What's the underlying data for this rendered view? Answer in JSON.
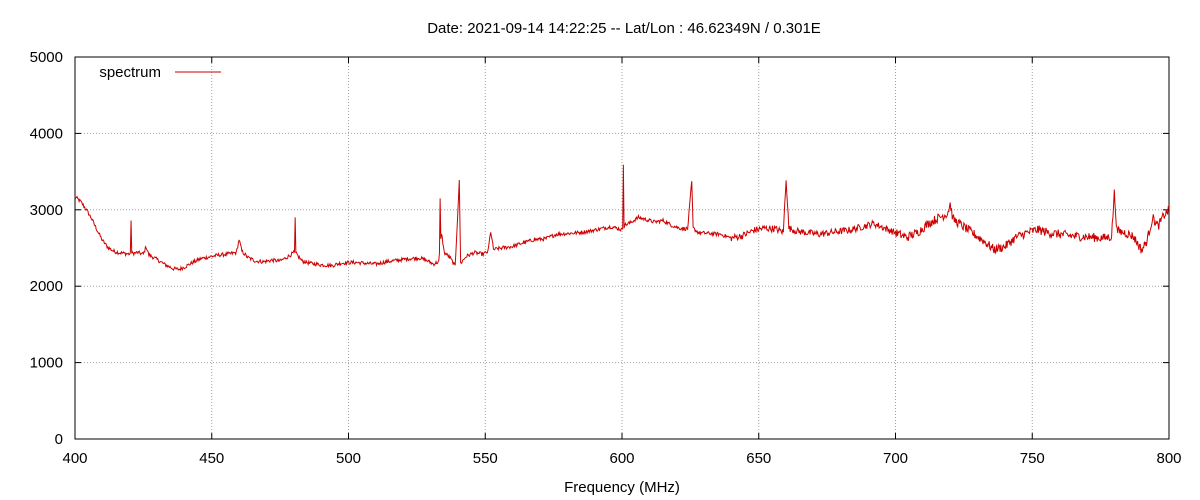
{
  "chart_data": {
    "type": "line",
    "title": "Date: 2021-09-14 14:22:25  --  Lat/Lon : 46.62349N / 0.301E",
    "xlabel": "Frequency (MHz)",
    "ylabel": "",
    "xlim": [
      400,
      800
    ],
    "ylim": [
      0,
      5000
    ],
    "x_ticks": [
      400,
      450,
      500,
      550,
      600,
      650,
      700,
      750,
      800
    ],
    "y_ticks": [
      0,
      1000,
      2000,
      3000,
      4000,
      5000
    ],
    "grid": true,
    "legend_position": "top-left",
    "series": [
      {
        "name": "spectrum",
        "color": "#cc0000",
        "points": [
          [
            400,
            3170
          ],
          [
            402,
            3110
          ],
          [
            404,
            3010
          ],
          [
            406,
            2890
          ],
          [
            408,
            2740
          ],
          [
            410,
            2600
          ],
          [
            412,
            2510
          ],
          [
            414,
            2460
          ],
          [
            416,
            2440
          ],
          [
            418,
            2430
          ],
          [
            420,
            2420
          ],
          [
            420.5,
            2860
          ],
          [
            421,
            2430
          ],
          [
            423,
            2440
          ],
          [
            425,
            2420
          ],
          [
            426,
            2520
          ],
          [
            427,
            2410
          ],
          [
            430,
            2350
          ],
          [
            433,
            2280
          ],
          [
            436,
            2230
          ],
          [
            438,
            2220
          ],
          [
            440,
            2250
          ],
          [
            443,
            2310
          ],
          [
            446,
            2360
          ],
          [
            450,
            2390
          ],
          [
            453,
            2410
          ],
          [
            456,
            2420
          ],
          [
            459,
            2440
          ],
          [
            460,
            2610
          ],
          [
            461,
            2460
          ],
          [
            463,
            2380
          ],
          [
            466,
            2330
          ],
          [
            469,
            2320
          ],
          [
            472,
            2340
          ],
          [
            475,
            2330
          ],
          [
            478,
            2390
          ],
          [
            480,
            2440
          ],
          [
            480.5,
            2900
          ],
          [
            481,
            2420
          ],
          [
            483,
            2330
          ],
          [
            486,
            2300
          ],
          [
            490,
            2280
          ],
          [
            494,
            2270
          ],
          [
            497,
            2300
          ],
          [
            500,
            2310
          ],
          [
            503,
            2310
          ],
          [
            506,
            2300
          ],
          [
            510,
            2290
          ],
          [
            514,
            2320
          ],
          [
            518,
            2340
          ],
          [
            522,
            2360
          ],
          [
            526,
            2370
          ],
          [
            529,
            2330
          ],
          [
            531,
            2290
          ],
          [
            533,
            2320
          ],
          [
            533.5,
            3150
          ],
          [
            534,
            2700
          ],
          [
            535,
            2440
          ],
          [
            537,
            2380
          ],
          [
            539,
            2260
          ],
          [
            540.5,
            3370
          ],
          [
            541,
            2300
          ],
          [
            543,
            2390
          ],
          [
            546,
            2440
          ],
          [
            549,
            2420
          ],
          [
            551,
            2450
          ],
          [
            552,
            2720
          ],
          [
            553,
            2480
          ],
          [
            556,
            2500
          ],
          [
            560,
            2520
          ],
          [
            564,
            2570
          ],
          [
            568,
            2610
          ],
          [
            572,
            2620
          ],
          [
            576,
            2680
          ],
          [
            580,
            2690
          ],
          [
            584,
            2700
          ],
          [
            588,
            2720
          ],
          [
            592,
            2750
          ],
          [
            596,
            2780
          ],
          [
            598,
            2760
          ],
          [
            600,
            2740
          ],
          [
            600.5,
            3590
          ],
          [
            601,
            2800
          ],
          [
            603,
            2830
          ],
          [
            606,
            2900
          ],
          [
            609,
            2870
          ],
          [
            612,
            2840
          ],
          [
            615,
            2860
          ],
          [
            618,
            2800
          ],
          [
            621,
            2760
          ],
          [
            624,
            2750
          ],
          [
            625.5,
            3370
          ],
          [
            626,
            2760
          ],
          [
            628,
            2700
          ],
          [
            632,
            2690
          ],
          [
            636,
            2680
          ],
          [
            640,
            2630
          ],
          [
            644,
            2660
          ],
          [
            648,
            2730
          ],
          [
            652,
            2760
          ],
          [
            656,
            2750
          ],
          [
            659,
            2710
          ],
          [
            660,
            3420
          ],
          [
            661,
            2760
          ],
          [
            664,
            2720
          ],
          [
            668,
            2700
          ],
          [
            672,
            2680
          ],
          [
            676,
            2700
          ],
          [
            680,
            2720
          ],
          [
            684,
            2740
          ],
          [
            688,
            2780
          ],
          [
            692,
            2820
          ],
          [
            696,
            2760
          ],
          [
            700,
            2700
          ],
          [
            704,
            2640
          ],
          [
            708,
            2700
          ],
          [
            712,
            2820
          ],
          [
            716,
            2900
          ],
          [
            719,
            2950
          ],
          [
            720,
            3080
          ],
          [
            721,
            2880
          ],
          [
            724,
            2800
          ],
          [
            728,
            2700
          ],
          [
            732,
            2600
          ],
          [
            736,
            2480
          ],
          [
            740,
            2520
          ],
          [
            744,
            2640
          ],
          [
            748,
            2700
          ],
          [
            752,
            2740
          ],
          [
            756,
            2700
          ],
          [
            760,
            2680
          ],
          [
            764,
            2660
          ],
          [
            768,
            2650
          ],
          [
            772,
            2640
          ],
          [
            776,
            2630
          ],
          [
            779,
            2650
          ],
          [
            780,
            3220
          ],
          [
            781,
            2720
          ],
          [
            784,
            2700
          ],
          [
            787,
            2650
          ],
          [
            790,
            2470
          ],
          [
            792,
            2600
          ],
          [
            794,
            2900
          ],
          [
            796,
            2780
          ],
          [
            798,
            2920
          ],
          [
            800,
            3000
          ]
        ]
      }
    ]
  }
}
